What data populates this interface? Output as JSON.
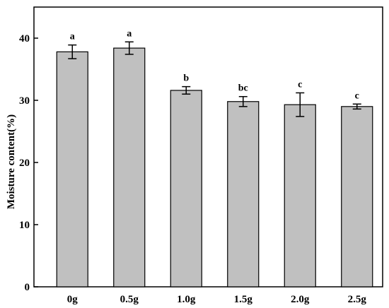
{
  "chart_data": {
    "type": "bar",
    "title": "",
    "xlabel": "",
    "ylabel": "Moisture content(%)",
    "categories": [
      "0g",
      "0.5g",
      "1.0g",
      "1.5g",
      "2.0g",
      "2.5g"
    ],
    "values": [
      37.8,
      38.4,
      31.6,
      29.8,
      29.3,
      29.0
    ],
    "errors": [
      1.1,
      1.0,
      0.6,
      0.8,
      1.9,
      0.4
    ],
    "significance": [
      "a",
      "a",
      "b",
      "bc",
      "c",
      "c"
    ],
    "ylim": [
      0,
      45
    ],
    "yticks": [
      0,
      10,
      20,
      30,
      40
    ],
    "grid": false,
    "legend": "none",
    "bar_color": "#c0c0c0",
    "edge_color": "#000000"
  }
}
